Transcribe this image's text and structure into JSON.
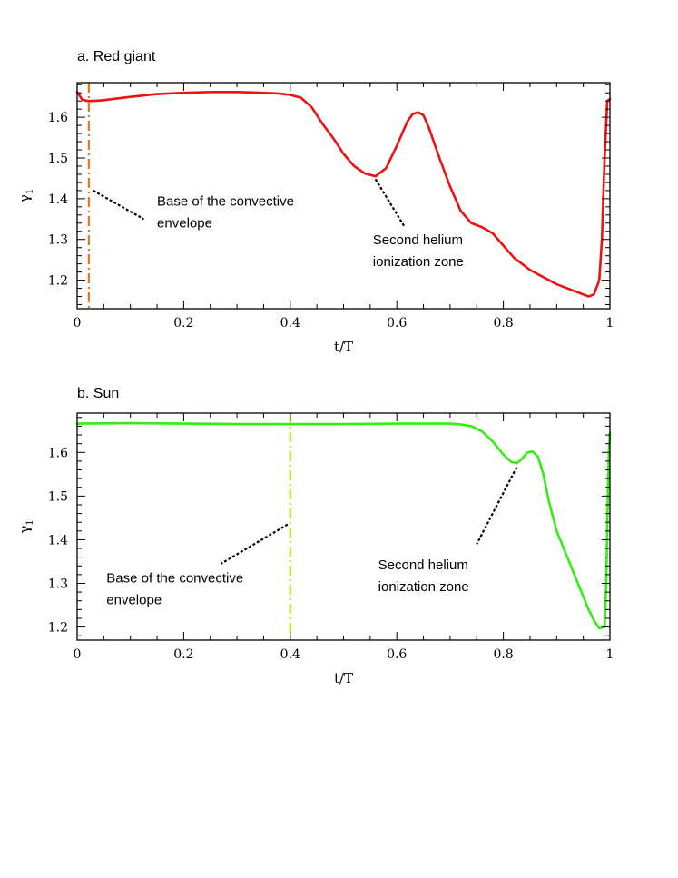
{
  "colors": {
    "red_curve": "#ee1111",
    "red_marker": "#ee7722",
    "green_curve": "#33ee11",
    "green_marker": "#aaee22"
  },
  "chart_data": [
    {
      "panel_id": "red-giant",
      "type": "line",
      "title": "a. Red giant",
      "xlabel": "t/T",
      "ylabel": "γ",
      "ylabel_subscript": "1",
      "xlim": [
        0,
        1
      ],
      "ylim": [
        1.13,
        1.685
      ],
      "xticks": [
        0,
        0.2,
        0.4,
        0.6,
        0.8,
        1
      ],
      "xtick_labels": [
        "0",
        "0.2",
        "0.4",
        "0.6",
        "0.8",
        "1"
      ],
      "yticks": [
        1.2,
        1.3,
        1.4,
        1.5,
        1.6
      ],
      "ytick_labels": [
        "1.2",
        "1.3",
        "1.4",
        "1.5",
        "1.6"
      ],
      "series": [
        {
          "name": "gamma1",
          "color": "#ee1111",
          "x": [
            0.0,
            0.005,
            0.01,
            0.02,
            0.03,
            0.05,
            0.1,
            0.15,
            0.2,
            0.25,
            0.3,
            0.35,
            0.38,
            0.4,
            0.42,
            0.44,
            0.46,
            0.48,
            0.5,
            0.52,
            0.54,
            0.56,
            0.58,
            0.6,
            0.62,
            0.63,
            0.64,
            0.65,
            0.66,
            0.68,
            0.7,
            0.72,
            0.74,
            0.76,
            0.78,
            0.8,
            0.82,
            0.85,
            0.9,
            0.94,
            0.96,
            0.97,
            0.98,
            0.985,
            0.99,
            0.995,
            1.0
          ],
          "y": [
            1.662,
            1.652,
            1.643,
            1.64,
            1.64,
            1.642,
            1.65,
            1.657,
            1.66,
            1.662,
            1.662,
            1.66,
            1.658,
            1.655,
            1.648,
            1.625,
            1.585,
            1.55,
            1.51,
            1.48,
            1.462,
            1.455,
            1.475,
            1.53,
            1.59,
            1.608,
            1.612,
            1.605,
            1.575,
            1.5,
            1.43,
            1.37,
            1.34,
            1.33,
            1.315,
            1.285,
            1.255,
            1.225,
            1.19,
            1.17,
            1.16,
            1.165,
            1.2,
            1.3,
            1.5,
            1.64,
            1.645
          ]
        }
      ],
      "marker": {
        "name": "base-of-convective-envelope-line",
        "x": 0.022,
        "style": "dash-dot",
        "color": "#ee7722"
      },
      "annotations": [
        {
          "name": "base-of-convective-envelope",
          "lines": [
            "Base of the convective",
            "envelope"
          ],
          "text_x": 0.15,
          "text_y": 1.383,
          "pointer": [
            [
              0.03,
              1.42
            ],
            [
              0.125,
              1.35
            ]
          ]
        },
        {
          "name": "second-helium-ionization-zone",
          "lines": [
            "Second helium",
            "ionization zone"
          ],
          "text_x": 0.555,
          "text_y": 1.288,
          "pointer": [
            [
              0.56,
              1.448
            ],
            [
              0.615,
              1.33
            ]
          ]
        }
      ]
    },
    {
      "panel_id": "sun",
      "type": "line",
      "title": "b. Sun",
      "xlabel": "t/T",
      "ylabel": "γ",
      "ylabel_subscript": "1",
      "xlim": [
        0,
        1
      ],
      "ylim": [
        1.17,
        1.69
      ],
      "xticks": [
        0,
        0.2,
        0.4,
        0.6,
        0.8,
        1
      ],
      "xtick_labels": [
        "0",
        "0.2",
        "0.4",
        "0.6",
        "0.8",
        "1"
      ],
      "yticks": [
        1.2,
        1.3,
        1.4,
        1.5,
        1.6
      ],
      "ytick_labels": [
        "1.2",
        "1.3",
        "1.4",
        "1.5",
        "1.6"
      ],
      "series": [
        {
          "name": "gamma1",
          "color": "#33ee11",
          "x": [
            0.0,
            0.1,
            0.2,
            0.3,
            0.4,
            0.5,
            0.6,
            0.7,
            0.72,
            0.74,
            0.76,
            0.78,
            0.8,
            0.815,
            0.825,
            0.835,
            0.845,
            0.855,
            0.865,
            0.875,
            0.885,
            0.9,
            0.92,
            0.94,
            0.96,
            0.97,
            0.98,
            0.99,
            0.993,
            0.996,
            0.998,
            1.0
          ],
          "y": [
            1.666,
            1.667,
            1.666,
            1.665,
            1.665,
            1.665,
            1.666,
            1.666,
            1.664,
            1.66,
            1.648,
            1.625,
            1.595,
            1.578,
            1.575,
            1.585,
            1.6,
            1.602,
            1.59,
            1.55,
            1.49,
            1.42,
            1.36,
            1.3,
            1.24,
            1.215,
            1.197,
            1.2,
            1.3,
            1.5,
            1.6,
            1.645
          ]
        }
      ],
      "marker": {
        "name": "base-of-convective-envelope-line",
        "x": 0.4,
        "style": "dash-dot",
        "color": "#aaee22"
      },
      "annotations": [
        {
          "name": "base-of-convective-envelope",
          "lines": [
            "Base of the convective",
            "envelope"
          ],
          "text_x": 0.055,
          "text_y": 1.302,
          "pointer": [
            [
              0.395,
              1.435
            ],
            [
              0.27,
              1.345
            ]
          ]
        },
        {
          "name": "second-helium-ionization-zone",
          "lines": [
            "Second helium",
            "ionization zone"
          ],
          "text_x": 0.565,
          "text_y": 1.332,
          "pointer": [
            [
              0.825,
              1.566
            ],
            [
              0.75,
              1.39
            ]
          ]
        }
      ]
    }
  ]
}
